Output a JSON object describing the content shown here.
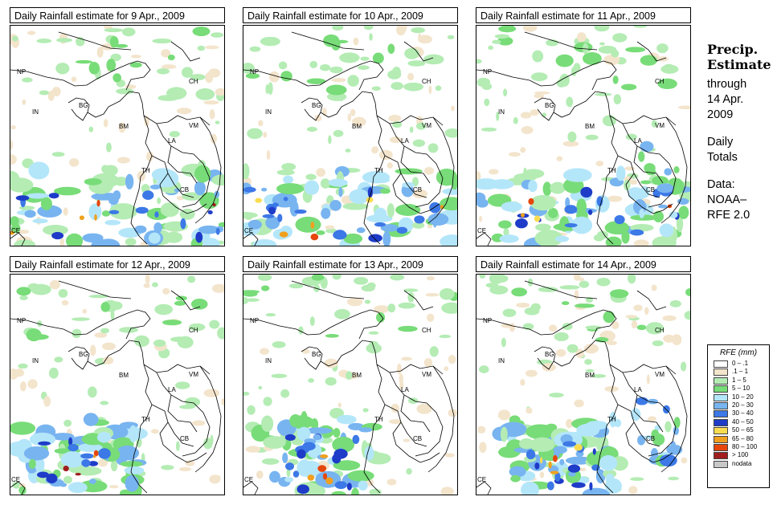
{
  "panels": [
    {
      "title": "Daily Rainfall estimate for  9 Apr., 2009",
      "intensity": 0.9
    },
    {
      "title": "Daily Rainfall estimate for  10 Apr., 2009",
      "intensity": 1.0
    },
    {
      "title": "Daily Rainfall estimate for  11 Apr., 2009",
      "intensity": 0.7
    },
    {
      "title": "Daily Rainfall estimate for  12 Apr., 2009",
      "intensity": 0.6
    },
    {
      "title": "Daily Rainfall estimate for  13 Apr., 2009",
      "intensity": 0.8
    },
    {
      "title": "Daily Rainfall estimate for  14 Apr., 2009",
      "intensity": 0.85
    }
  ],
  "country_labels": [
    "NP",
    "CH",
    "IN",
    "BG",
    "BM",
    "VM",
    "LA",
    "TH",
    "CB",
    "CE"
  ],
  "side": {
    "title_line1": "Precip.",
    "title_line2": "Estimate",
    "through": "through",
    "date_line1": "14 Apr.",
    "date_line2": "2009",
    "daily_line1": "Daily",
    "daily_line2": "Totals",
    "data_line1": "Data:",
    "data_line2": "NOAA–",
    "data_line3": "RFE 2.0"
  },
  "legend": {
    "title": "RFE (mm)",
    "items": [
      {
        "label": "0 – .1",
        "color": "#ffffff"
      },
      {
        "label": ".1 – 1",
        "color": "#f3e4cc"
      },
      {
        "label": "1 – 5",
        "color": "#b4ecb4"
      },
      {
        "label": "5 – 10",
        "color": "#78dc78"
      },
      {
        "label": "10 – 20",
        "color": "#b4e6fa"
      },
      {
        "label": "20 – 30",
        "color": "#78b4f0"
      },
      {
        "label": "30 – 40",
        "color": "#3c78e6"
      },
      {
        "label": "40 – 50",
        "color": "#1e3cc8"
      },
      {
        "label": "50 – 65",
        "color": "#fadc50"
      },
      {
        "label": "65 – 80",
        "color": "#f0a01e"
      },
      {
        "label": "80 – 100",
        "color": "#e6460a"
      },
      {
        "label": "> 100",
        "color": "#a01e1e"
      },
      {
        "label": "nodata",
        "color": "#c8c8c8"
      }
    ]
  }
}
